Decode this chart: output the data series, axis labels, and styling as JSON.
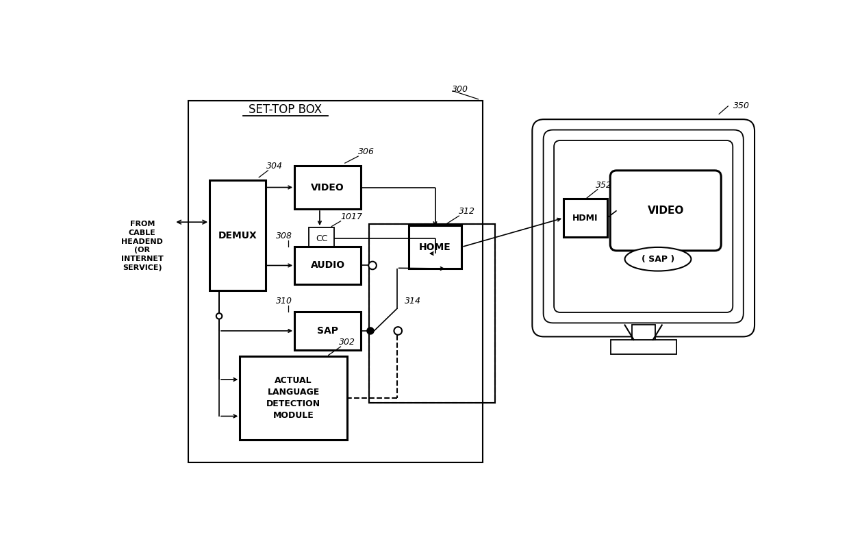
{
  "bg_color": "#ffffff",
  "fig_width": 12.4,
  "fig_height": 7.97,
  "title": "SET-TOP BOX",
  "ref_300": "300",
  "ref_350": "350",
  "ref_302": "302",
  "ref_304": "304",
  "ref_306": "306",
  "ref_308": "308",
  "ref_310": "310",
  "ref_312": "312",
  "ref_314": "314",
  "ref_352": "352",
  "ref_1017": "1017",
  "from_label": "FROM\nCABLE\nHEADEND\n(OR\nINTERNET\nSERVICE)"
}
